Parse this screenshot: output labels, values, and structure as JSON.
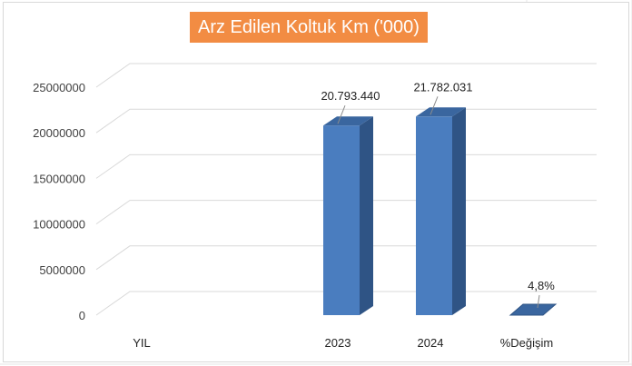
{
  "chart_data": {
    "type": "bar",
    "title": "Arz Edilen Koltuk Km ('000)",
    "categories": [
      "YIL",
      "2023",
      "2024",
      "%Değişim"
    ],
    "values": [
      0,
      20793440,
      21782031,
      4.8
    ],
    "data_labels": [
      "",
      "20.793.440",
      "21.782.031",
      "4,8%"
    ],
    "y_ticks": [
      0,
      5000000,
      10000000,
      15000000,
      20000000,
      25000000
    ],
    "y_tick_labels": [
      "0",
      "5000000",
      "10000000",
      "15000000",
      "20000000",
      "25000000"
    ],
    "ylim": [
      0,
      25000000
    ],
    "grid": true,
    "legend": "none",
    "style": "3d-column"
  },
  "colors": {
    "bar_front": "#4a7dbf",
    "bar_side": "#2f5485",
    "bar_top": "#3a669f",
    "title_bg": "#f28c43",
    "title_text": "#ffffff",
    "gridline": "#d9d9d9",
    "axis_text": "#404040"
  }
}
